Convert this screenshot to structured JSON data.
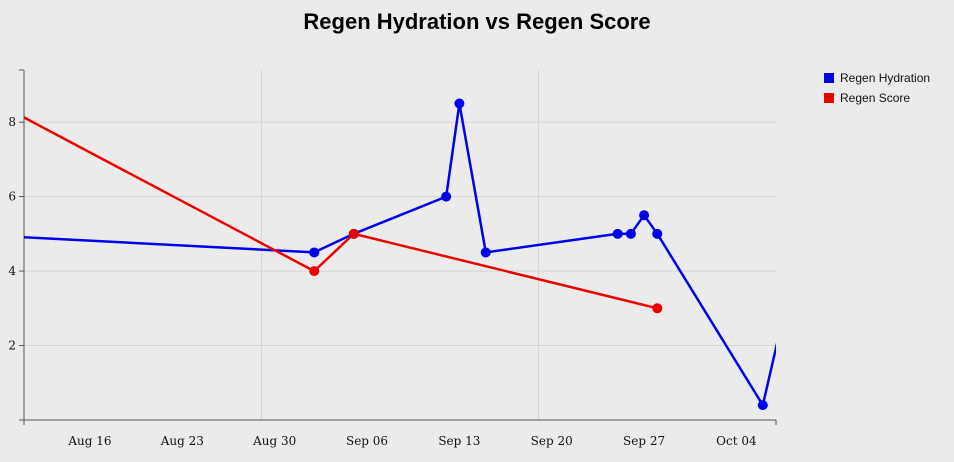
{
  "chart_data": {
    "type": "line",
    "title": "Regen Hydration vs Regen Score",
    "xlabel": "",
    "ylabel": "",
    "x_axis_type": "date",
    "xlim": [
      "2016-08-11",
      "2016-10-07"
    ],
    "ylim": [
      0,
      9.4
    ],
    "x_ticks": [
      {
        "date": "2016-08-16",
        "label": "Aug 16"
      },
      {
        "date": "2016-08-23",
        "label": "Aug 23"
      },
      {
        "date": "2016-08-30",
        "label": "Aug 30"
      },
      {
        "date": "2016-09-06",
        "label": "Sep 06"
      },
      {
        "date": "2016-09-13",
        "label": "Sep 13"
      },
      {
        "date": "2016-09-20",
        "label": "Sep 20"
      },
      {
        "date": "2016-09-27",
        "label": "Sep 27"
      },
      {
        "date": "2016-10-04",
        "label": "Oct 04"
      }
    ],
    "y_ticks": [
      2,
      4,
      6,
      8
    ],
    "grid": true,
    "legend_position": "top-right",
    "series": [
      {
        "name": "Regen Hydration",
        "color": "#0000ee",
        "points": [
          {
            "x": "2016-08-06",
            "y": 5.0
          },
          {
            "x": "2016-09-02",
            "y": 4.5
          },
          {
            "x": "2016-09-05",
            "y": 5.0
          },
          {
            "x": "2016-09-12",
            "y": 6.0
          },
          {
            "x": "2016-09-13",
            "y": 8.5
          },
          {
            "x": "2016-09-15",
            "y": 4.5
          },
          {
            "x": "2016-09-25",
            "y": 5.0
          },
          {
            "x": "2016-09-26",
            "y": 5.0
          },
          {
            "x": "2016-09-27",
            "y": 5.5
          },
          {
            "x": "2016-09-28",
            "y": 5.0
          },
          {
            "x": "2016-10-06",
            "y": 0.4
          },
          {
            "x": "2016-10-09",
            "y": 5.0
          }
        ]
      },
      {
        "name": "Regen Score",
        "color": "#ee0000",
        "points": [
          {
            "x": "2016-08-09",
            "y": 8.5
          },
          {
            "x": "2016-09-02",
            "y": 4.0
          },
          {
            "x": "2016-09-05",
            "y": 5.0
          },
          {
            "x": "2016-09-28",
            "y": 3.0
          }
        ]
      }
    ]
  }
}
